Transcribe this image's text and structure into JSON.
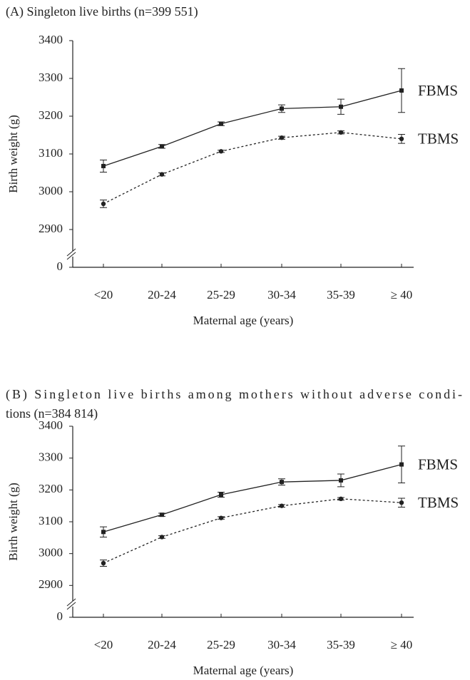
{
  "chart_data": [
    {
      "type": "line",
      "title": [
        "(A) Singleton live births (n=399 551)"
      ],
      "xlabel": "Maternal age (years)",
      "ylabel": "Birth weight (g)",
      "categories": [
        "<20",
        "20-24",
        "25-29",
        "30-34",
        "35-39",
        "≥ 40"
      ],
      "ylim": [
        0,
        3400
      ],
      "y_break": [
        0,
        2800
      ],
      "yticks": [
        0,
        2900,
        3000,
        3100,
        3200,
        3300,
        3400
      ],
      "series": [
        {
          "name": "FBMS",
          "color": "#222222",
          "line_style": "solid",
          "marker": "square",
          "values": [
            3068,
            3120,
            3180,
            3220,
            3225,
            3268
          ],
          "errors": [
            16,
            5,
            5,
            10,
            20,
            58
          ]
        },
        {
          "name": "TBMS",
          "color": "#222222",
          "line_style": "dotted",
          "marker": "circle",
          "values": [
            2968,
            3046,
            3107,
            3143,
            3157,
            3140
          ],
          "errors": [
            10,
            4,
            3,
            4,
            4,
            12
          ]
        }
      ]
    },
    {
      "type": "line",
      "title": [
        "(B) Singleton live births among mothers without adverse condi-",
        "tions (n=384 814)"
      ],
      "xlabel": "Maternal age (years)",
      "ylabel": "Birth weight (g)",
      "categories": [
        "<20",
        "20-24",
        "25-29",
        "30-34",
        "35-39",
        "≥ 40"
      ],
      "ylim": [
        0,
        3400
      ],
      "y_break": [
        0,
        2800
      ],
      "yticks": [
        0,
        2900,
        3000,
        3100,
        3200,
        3300,
        3400
      ],
      "series": [
        {
          "name": "FBMS",
          "color": "#222222",
          "line_style": "solid",
          "marker": "square",
          "values": [
            3068,
            3122,
            3185,
            3225,
            3230,
            3280
          ],
          "errors": [
            16,
            5,
            8,
            10,
            20,
            58
          ]
        },
        {
          "name": "TBMS",
          "color": "#222222",
          "line_style": "dotted",
          "marker": "circle",
          "values": [
            2970,
            3052,
            3112,
            3150,
            3172,
            3160
          ],
          "errors": [
            10,
            4,
            4,
            4,
            4,
            14
          ]
        }
      ]
    }
  ]
}
